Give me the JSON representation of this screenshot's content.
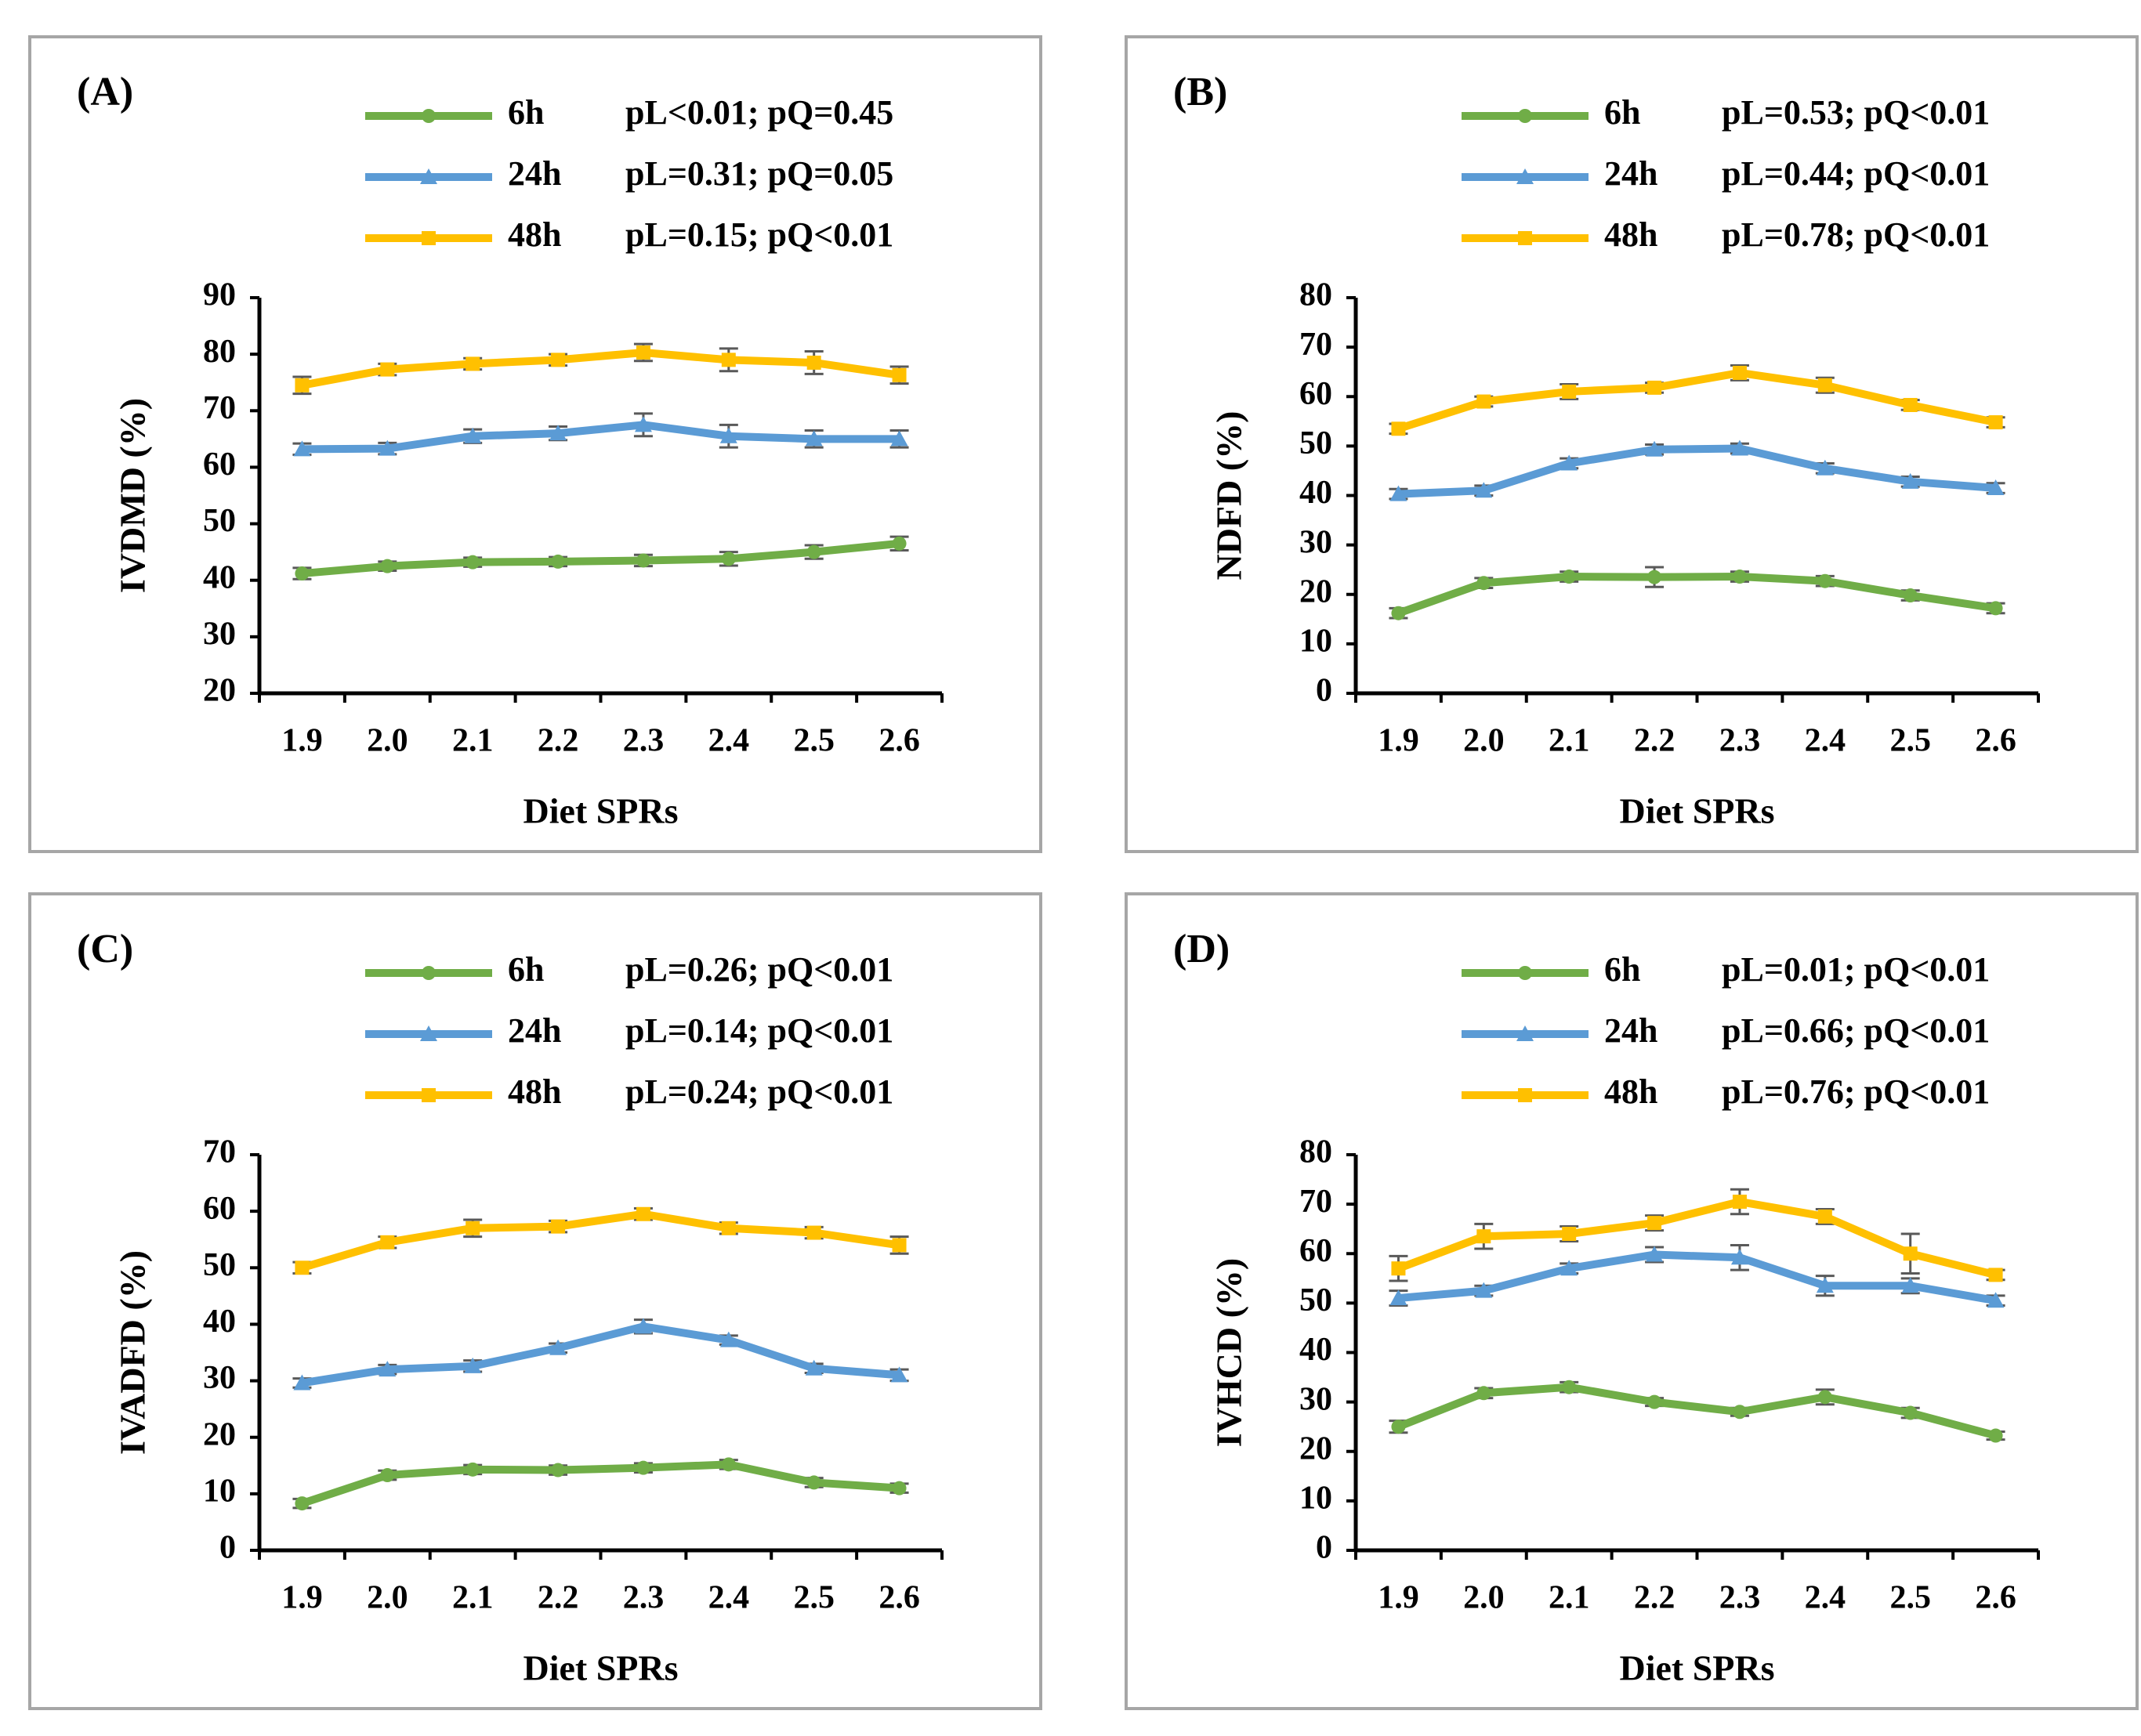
{
  "chart_data": [
    {
      "type": "line",
      "title": "(A)",
      "y_label": "IVDMD (%)",
      "x_label": "Diet SPRs",
      "categories": [
        "1.9",
        "2.0",
        "2.1",
        "2.2",
        "2.3",
        "2.4",
        "2.5",
        "2.6"
      ],
      "ylim": [
        20,
        90
      ],
      "yticks": [
        20,
        30,
        40,
        50,
        60,
        70,
        80,
        90
      ],
      "annotations": [
        "pL<0.01; pQ=0.45",
        "pL=0.31; pQ=0.05",
        "pL=0.15; pQ<0.01"
      ],
      "series": [
        {
          "name": "6h",
          "color": "#70ad47",
          "marker": "circle",
          "values": [
            41.2,
            42.5,
            43.2,
            43.3,
            43.5,
            43.8,
            45,
            46.5
          ],
          "errors": [
            1,
            0.8,
            0.8,
            0.8,
            1,
            1.2,
            1.2,
            1.2
          ]
        },
        {
          "name": "24h",
          "color": "#5b9bd5",
          "marker": "triangle",
          "values": [
            63.2,
            63.3,
            65.5,
            66,
            67.5,
            65.5,
            65,
            65
          ],
          "errors": [
            1,
            1,
            1.2,
            1.2,
            2,
            2,
            1.5,
            1.5
          ]
        },
        {
          "name": "48h",
          "color": "#ffc000",
          "marker": "square",
          "values": [
            74.5,
            77.3,
            78.3,
            79,
            80.3,
            79,
            78.5,
            76.3
          ],
          "errors": [
            1.5,
            1,
            1,
            1,
            1.5,
            2,
            2,
            1.5
          ]
        }
      ]
    },
    {
      "type": "line",
      "title": "(B)",
      "y_label": "NDFD (%)",
      "x_label": "Diet SPRs",
      "categories": [
        "1.9",
        "2.0",
        "2.1",
        "2.2",
        "2.3",
        "2.4",
        "2.5",
        "2.6"
      ],
      "ylim": [
        0,
        80
      ],
      "yticks": [
        0,
        10,
        20,
        30,
        40,
        50,
        60,
        70,
        80
      ],
      "annotations": [
        "pL=0.53; pQ<0.01",
        "pL=0.44; pQ<0.01",
        "pL=0.78; pQ<0.01"
      ],
      "series": [
        {
          "name": "6h",
          "color": "#70ad47",
          "marker": "circle",
          "values": [
            16.2,
            22.3,
            23.6,
            23.5,
            23.6,
            22.7,
            19.8,
            17.2
          ],
          "errors": [
            1,
            1,
            1,
            2,
            1,
            1,
            1,
            1
          ]
        },
        {
          "name": "24h",
          "color": "#5b9bd5",
          "marker": "triangle",
          "values": [
            40.3,
            41,
            46.5,
            49.3,
            49.5,
            45.5,
            42.8,
            41.5
          ],
          "errors": [
            1,
            1,
            1,
            1,
            1,
            1,
            1,
            1
          ]
        },
        {
          "name": "48h",
          "color": "#ffc000",
          "marker": "square",
          "values": [
            53.5,
            59,
            61,
            61.8,
            64.8,
            62.3,
            58.3,
            54.8
          ],
          "errors": [
            1,
            1,
            1.5,
            1,
            1.5,
            1.5,
            1,
            1
          ]
        }
      ]
    },
    {
      "type": "line",
      "title": "(C)",
      "y_label": "IVADFD (%)",
      "x_label": "Diet SPRs",
      "categories": [
        "1.9",
        "2.0",
        "2.1",
        "2.2",
        "2.3",
        "2.4",
        "2.5",
        "2.6"
      ],
      "ylim": [
        0,
        70
      ],
      "yticks": [
        0,
        10,
        20,
        30,
        40,
        50,
        60,
        70
      ],
      "annotations": [
        "pL=0.26; pQ<0.01",
        "pL=0.14; pQ<0.01",
        "pL=0.24; pQ<0.01"
      ],
      "series": [
        {
          "name": "6h",
          "color": "#70ad47",
          "marker": "circle",
          "values": [
            8.3,
            13.3,
            14.3,
            14.2,
            14.6,
            15.2,
            12,
            11
          ],
          "errors": [
            0.8,
            0.8,
            0.8,
            0.8,
            0.8,
            0.8,
            0.8,
            0.8
          ]
        },
        {
          "name": "24h",
          "color": "#5b9bd5",
          "marker": "triangle",
          "values": [
            29.6,
            32,
            32.6,
            35.8,
            39.6,
            37.2,
            32.2,
            31
          ],
          "errors": [
            0.8,
            0.8,
            1,
            0.8,
            1.2,
            0.8,
            0.8,
            1
          ]
        },
        {
          "name": "48h",
          "color": "#ffc000",
          "marker": "square",
          "values": [
            50,
            54.5,
            57,
            57.3,
            59.5,
            57,
            56.2,
            54
          ],
          "errors": [
            1,
            1,
            1.5,
            1,
            1,
            1,
            1,
            1.5
          ]
        }
      ]
    },
    {
      "type": "line",
      "title": "(D)",
      "y_label": "IVHCD (%)",
      "x_label": "Diet SPRs",
      "categories": [
        "1.9",
        "2.0",
        "2.1",
        "2.2",
        "2.3",
        "2.4",
        "2.5",
        "2.6"
      ],
      "ylim": [
        0,
        80
      ],
      "yticks": [
        0,
        10,
        20,
        30,
        40,
        50,
        60,
        70,
        80
      ],
      "annotations": [
        "pL=0.01; pQ<0.01",
        "pL=0.66; pQ<0.01",
        "pL=0.76; pQ<0.01"
      ],
      "series": [
        {
          "name": "6h",
          "color": "#70ad47",
          "marker": "circle",
          "values": [
            25,
            31.8,
            33,
            30,
            28,
            31,
            27.8,
            23.2
          ],
          "errors": [
            1.2,
            1,
            1,
            0.8,
            0.8,
            1.5,
            1,
            0.8
          ]
        },
        {
          "name": "24h",
          "color": "#5b9bd5",
          "marker": "triangle",
          "values": [
            51,
            52.5,
            57,
            59.8,
            59.2,
            53.5,
            53.5,
            50.5
          ],
          "errors": [
            1.5,
            1,
            1,
            1.5,
            2.5,
            2,
            1.5,
            1
          ]
        },
        {
          "name": "48h",
          "color": "#ffc000",
          "marker": "square",
          "values": [
            57,
            63.5,
            64,
            66.2,
            70.5,
            67.5,
            60,
            55.7
          ],
          "errors": [
            2.5,
            2.5,
            1.5,
            1.5,
            2.5,
            1.5,
            4,
            1
          ]
        }
      ]
    }
  ]
}
